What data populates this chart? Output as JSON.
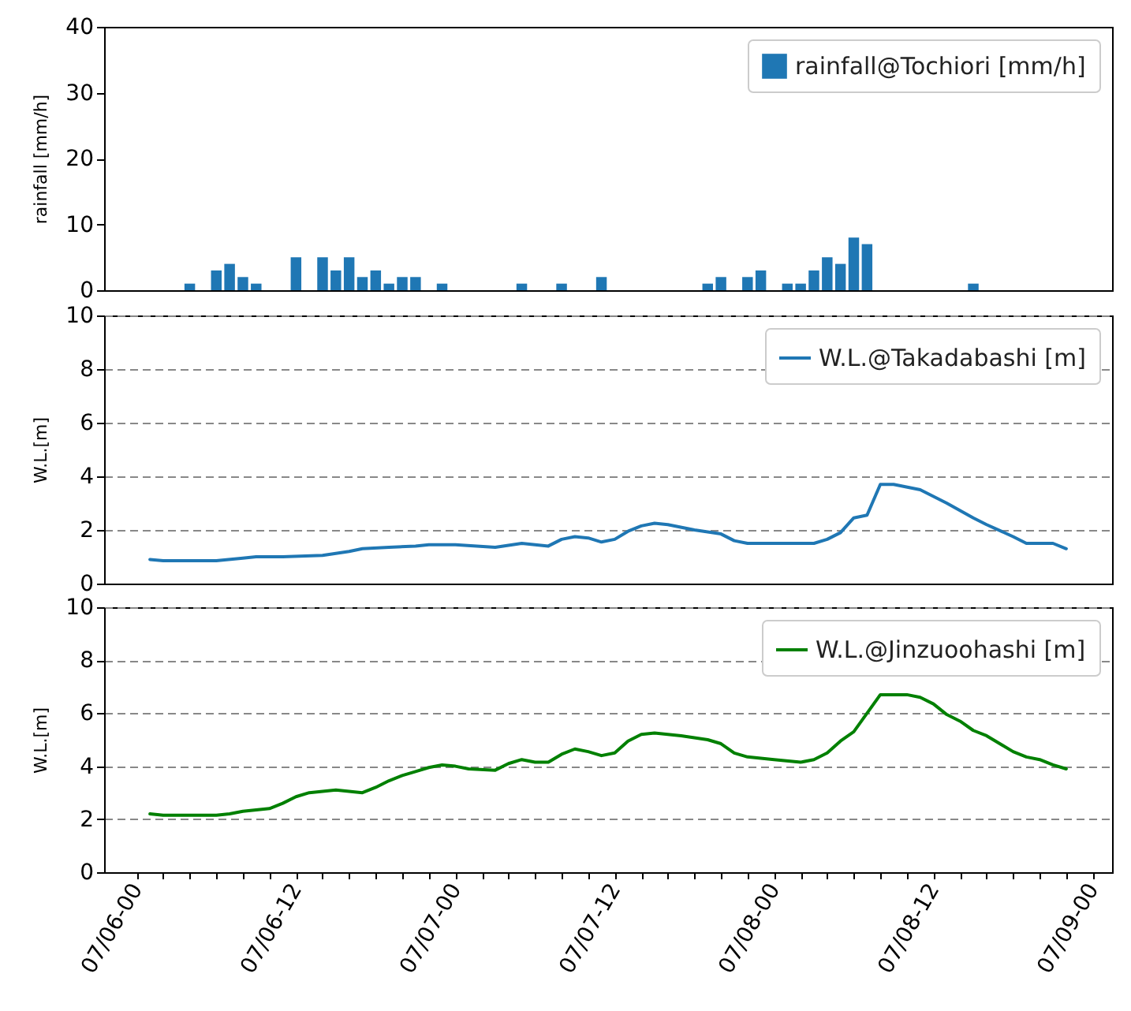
{
  "chart_data": [
    {
      "type": "bar",
      "ylabel": "rainfall [mm/h]",
      "legend": "top right",
      "tick_labels": "y",
      "xlim": [
        "--07-05T21:33",
        "--07-09T01:27"
      ],
      "ylim": [
        0,
        40
      ],
      "yticks": [
        0,
        10,
        20,
        30,
        40
      ],
      "series": [
        {
          "name": "rainfall@Tochiori [mm/h]",
          "color": "#1f77b4",
          "x": [
            "--07-06T04:00",
            "--07-06T06:00",
            "--07-06T07:00",
            "--07-06T08:00",
            "--07-06T09:00",
            "--07-06T12:00",
            "--07-06T14:00",
            "--07-06T15:00",
            "--07-06T16:00",
            "--07-06T17:00",
            "--07-06T18:00",
            "--07-06T19:00",
            "--07-06T20:00",
            "--07-06T21:00",
            "--07-06T23:00",
            "--07-07T05:00",
            "--07-07T08:00",
            "--07-07T11:00",
            "--07-07T19:00",
            "--07-07T20:00",
            "--07-07T22:00",
            "--07-07T23:00",
            "--07-08T01:00",
            "--07-08T02:00",
            "--07-08T03:00",
            "--07-08T04:00",
            "--07-08T05:00",
            "--07-08T06:00",
            "--07-08T07:00",
            "--07-08T15:00"
          ],
          "values": [
            1,
            3,
            4,
            2,
            1,
            5,
            5,
            3,
            5,
            2,
            3,
            1,
            2,
            2,
            1,
            1,
            1,
            2,
            1,
            2,
            2,
            3,
            1,
            1,
            3,
            5,
            4,
            8,
            7,
            1
          ]
        }
      ]
    },
    {
      "type": "line",
      "ylabel": "W.L.[m]",
      "legend": "top right",
      "tick_labels": "y",
      "grid": "y",
      "xlim": [
        "--07-05T21:33",
        "--07-09T01:27"
      ],
      "ylim": [
        0,
        10
      ],
      "yticks": [
        0,
        2,
        4,
        6,
        8,
        10
      ],
      "series": [
        {
          "name": "W.L.@Takadabashi [m]",
          "color": "#1f77b4",
          "x": [
            "--07-06T01:00",
            "--07-06T02:00",
            "--07-06T04:00",
            "--07-06T06:00",
            "--07-06T08:00",
            "--07-06T09:00",
            "--07-06T11:00",
            "--07-06T14:00",
            "--07-06T16:00",
            "--07-06T17:00",
            "--07-06T19:00",
            "--07-06T21:00",
            "--07-06T22:00",
            "--07-07T00:00",
            "--07-07T03:00",
            "--07-07T05:00",
            "--07-07T07:00",
            "--07-07T08:00",
            "--07-07T09:00",
            "--07-07T10:00",
            "--07-07T11:00",
            "--07-07T12:00",
            "--07-07T13:00",
            "--07-07T14:00",
            "--07-07T15:00",
            "--07-07T16:00",
            "--07-07T18:00",
            "--07-07T20:00",
            "--07-07T21:00",
            "--07-07T22:00",
            "--07-08T01:00",
            "--07-08T03:00",
            "--07-08T04:00",
            "--07-08T05:00",
            "--07-08T06:00",
            "--07-08T07:00",
            "--07-08T08:00",
            "--07-08T09:00",
            "--07-08T11:00",
            "--07-08T13:00",
            "--07-08T15:00",
            "--07-08T16:00",
            "--07-08T18:00",
            "--07-08T19:00",
            "--07-08T21:00",
            "--07-08T22:00"
          ],
          "values": [
            0.9,
            0.85,
            0.85,
            0.85,
            0.95,
            1.0,
            1.0,
            1.05,
            1.2,
            1.3,
            1.35,
            1.4,
            1.45,
            1.45,
            1.35,
            1.5,
            1.4,
            1.65,
            1.75,
            1.7,
            1.55,
            1.65,
            1.95,
            2.15,
            2.25,
            2.2,
            2.0,
            1.85,
            1.6,
            1.5,
            1.5,
            1.5,
            1.65,
            1.9,
            2.45,
            2.55,
            3.7,
            3.7,
            3.5,
            3.0,
            2.45,
            2.2,
            1.75,
            1.5,
            1.5,
            1.3
          ]
        }
      ]
    },
    {
      "type": "line",
      "ylabel": "W.L.[m]",
      "legend": "top right",
      "grid": "y",
      "xlim": [
        "--07-05T21:33",
        "--07-09T01:27"
      ],
      "ylim": [
        0,
        10
      ],
      "yticks": [
        0,
        2,
        4,
        6,
        8,
        10
      ],
      "xticks": [
        {
          "value": "--07-06T00:00",
          "label": "07/06-00"
        },
        {
          "value": "--07-06T02:00",
          "label": null
        },
        {
          "value": "--07-06T04:00",
          "label": null
        },
        {
          "value": "--07-06T06:00",
          "label": null
        },
        {
          "value": "--07-06T08:00",
          "label": null
        },
        {
          "value": "--07-06T10:00",
          "label": null
        },
        {
          "value": "--07-06T12:00",
          "label": "07/06-12"
        },
        {
          "value": "--07-06T14:00",
          "label": null
        },
        {
          "value": "--07-06T16:00",
          "label": null
        },
        {
          "value": "--07-06T18:00",
          "label": null
        },
        {
          "value": "--07-06T20:00",
          "label": null
        },
        {
          "value": "--07-06T22:00",
          "label": null
        },
        {
          "value": "--07-07T00:00",
          "label": "07/07-00"
        },
        {
          "value": "--07-07T02:00",
          "label": null
        },
        {
          "value": "--07-07T04:00",
          "label": null
        },
        {
          "value": "--07-07T06:00",
          "label": null
        },
        {
          "value": "--07-07T08:00",
          "label": null
        },
        {
          "value": "--07-07T10:00",
          "label": null
        },
        {
          "value": "--07-07T12:00",
          "label": "07/07-12"
        },
        {
          "value": "--07-07T14:00",
          "label": null
        },
        {
          "value": "--07-07T16:00",
          "label": null
        },
        {
          "value": "--07-07T18:00",
          "label": null
        },
        {
          "value": "--07-07T20:00",
          "label": null
        },
        {
          "value": "--07-07T22:00",
          "label": null
        },
        {
          "value": "--07-08T00:00",
          "label": "07/08-00"
        },
        {
          "value": "--07-08T02:00",
          "label": null
        },
        {
          "value": "--07-08T04:00",
          "label": null
        },
        {
          "value": "--07-08T06:00",
          "label": null
        },
        {
          "value": "--07-08T08:00",
          "label": null
        },
        {
          "value": "--07-08T10:00",
          "label": null
        },
        {
          "value": "--07-08T12:00",
          "label": "07/08-12"
        },
        {
          "value": "--07-08T14:00",
          "label": null
        },
        {
          "value": "--07-08T16:00",
          "label": null
        },
        {
          "value": "--07-08T18:00",
          "label": null
        },
        {
          "value": "--07-08T20:00",
          "label": null
        },
        {
          "value": "--07-08T22:00",
          "label": null
        },
        {
          "value": "--07-09T00:00",
          "label": "07/09-00"
        }
      ],
      "series": [
        {
          "name": "W.L.@Jinzuoohashi [m]",
          "color": "#008000",
          "x": [
            "--07-06T01:00",
            "--07-06T02:00",
            "--07-06T06:00",
            "--07-06T07:00",
            "--07-06T08:00",
            "--07-06T10:00",
            "--07-06T11:00",
            "--07-06T12:00",
            "--07-06T13:00",
            "--07-06T15:00",
            "--07-06T16:00",
            "--07-06T17:00",
            "--07-06T18:00",
            "--07-06T19:00",
            "--07-06T20:00",
            "--07-06T21:00",
            "--07-06T22:00",
            "--07-06T23:00",
            "--07-07T00:00",
            "--07-07T01:00",
            "--07-07T03:00",
            "--07-07T04:00",
            "--07-07T05:00",
            "--07-07T06:00",
            "--07-07T07:00",
            "--07-07T08:00",
            "--07-07T09:00",
            "--07-07T10:00",
            "--07-07T11:00",
            "--07-07T12:00",
            "--07-07T13:00",
            "--07-07T14:00",
            "--07-07T15:00",
            "--07-07T17:00",
            "--07-07T19:00",
            "--07-07T20:00",
            "--07-07T21:00",
            "--07-07T22:00",
            "--07-08T00:00",
            "--07-08T02:00",
            "--07-08T03:00",
            "--07-08T04:00",
            "--07-08T05:00",
            "--07-08T06:00",
            "--07-08T08:00",
            "--07-08T10:00",
            "--07-08T11:00",
            "--07-08T12:00",
            "--07-08T13:00",
            "--07-08T14:00",
            "--07-08T15:00",
            "--07-08T16:00",
            "--07-08T18:00",
            "--07-08T19:00",
            "--07-08T20:00",
            "--07-08T21:00",
            "--07-08T22:00"
          ],
          "values": [
            2.2,
            2.15,
            2.15,
            2.2,
            2.3,
            2.4,
            2.6,
            2.85,
            3.0,
            3.1,
            3.05,
            3.0,
            3.2,
            3.45,
            3.65,
            3.8,
            3.95,
            4.05,
            4.0,
            3.9,
            3.85,
            4.1,
            4.25,
            4.15,
            4.15,
            4.45,
            4.65,
            4.55,
            4.4,
            4.5,
            4.95,
            5.2,
            5.25,
            5.15,
            5.0,
            4.85,
            4.5,
            4.35,
            4.25,
            4.15,
            4.25,
            4.5,
            4.95,
            5.3,
            6.7,
            6.7,
            6.6,
            6.35,
            5.95,
            5.7,
            5.35,
            5.15,
            4.55,
            4.35,
            4.25,
            4.05,
            3.9
          ]
        }
      ]
    }
  ]
}
